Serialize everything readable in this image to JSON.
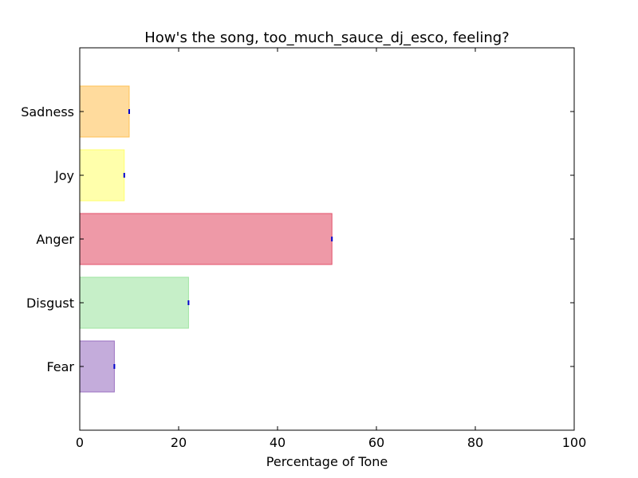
{
  "chart_data": {
    "type": "bar",
    "orientation": "horizontal",
    "title": "How's the song, too_much_sauce_dj_esco, feeling?",
    "xlabel": "Percentage of Tone",
    "ylabel": "",
    "xlim": [
      0,
      100
    ],
    "xticks": [
      0,
      20,
      40,
      60,
      80,
      100
    ],
    "categories": [
      "Fear",
      "Disgust",
      "Anger",
      "Joy",
      "Sadness"
    ],
    "values": [
      7,
      22,
      51,
      9,
      10
    ],
    "colors": [
      "#9467bd",
      "#98e29a",
      "#e0455f",
      "#ffff66",
      "#ffbe4d"
    ],
    "error_marker_color": "#0000cc",
    "grid": false,
    "legend": "none"
  }
}
